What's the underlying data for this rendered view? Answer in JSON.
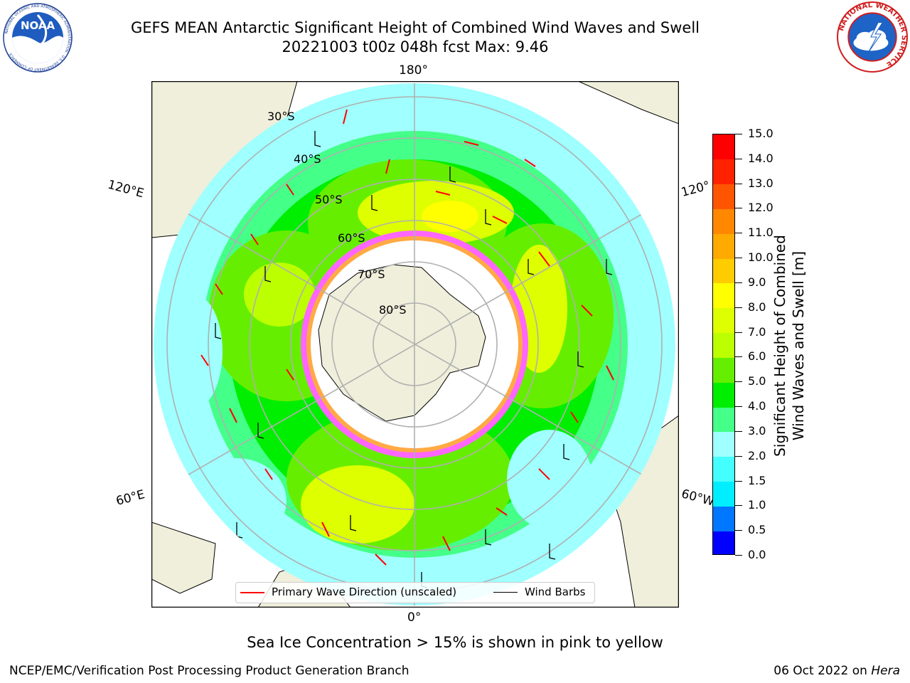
{
  "header": {
    "title_line1": "GEFS MEAN Antarctic Significant Height of Combined Wind Waves and Swell",
    "title_line2": "20221003 t00z 048h fcst   Max: 9.46"
  },
  "logos": {
    "noaa_text": "NOAA",
    "noaa_ring_text": "NATIONAL OCEANIC AND ATMOSPHERIC ADMINISTRATION · U.S. DEPARTMENT OF COMMERCE",
    "nws_ring_text": "NATIONAL WEATHER SERVICE"
  },
  "map": {
    "longitude_labels": [
      "180°",
      "120°E",
      "120°",
      "60°E",
      "60°W",
      "0°"
    ],
    "latitude_labels": [
      "30°S",
      "40°S",
      "50°S",
      "60°S",
      "70°S",
      "80°S"
    ]
  },
  "legend": {
    "wave_label": "Primary Wave Direction (unscaled)",
    "wind_label": "Wind Barbs",
    "wave_color": "#ff0000",
    "wind_color": "#000000"
  },
  "colorbar": {
    "label_line1": "Significant Height of Combined",
    "label_line2": "Wind Waves and Swell [m]",
    "ticks": [
      "0.0",
      "0.5",
      "1.0",
      "1.5",
      "2.0",
      "3.0",
      "4.0",
      "5.0",
      "6.0",
      "7.0",
      "8.0",
      "9.0",
      "10.0",
      "11.0",
      "12.0",
      "13.0",
      "14.0",
      "15.0"
    ],
    "colors": [
      "#0000ff",
      "#0077ff",
      "#00eeff",
      "#44ffff",
      "#a0ffff",
      "#44ff88",
      "#00ee00",
      "#66ee00",
      "#bbff00",
      "#ddff00",
      "#ffff00",
      "#ffcc00",
      "#ffaa00",
      "#ff8800",
      "#ff5500",
      "#ff2200",
      "#ff0000"
    ]
  },
  "note": "Sea Ice Concentration > 15% is shown in pink to yellow",
  "footer": {
    "left": "NCEP/EMC/Verification Post Processing Product Generation Branch",
    "right_date": "06 Oct 2022 on",
    "right_host": "Hera"
  }
}
